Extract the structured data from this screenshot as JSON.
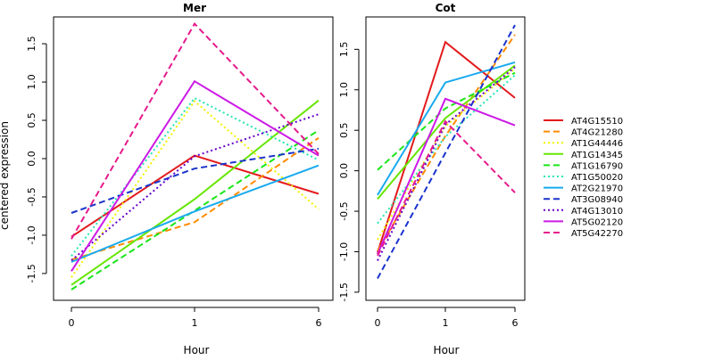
{
  "chart_data": [
    {
      "type": "line",
      "title": "Mer",
      "xlabel": "Hour",
      "ylabel": "centered expression",
      "categories": [
        "0",
        "1",
        "6"
      ],
      "ylim": [
        -1.85,
        1.85
      ],
      "yticks": [
        "-1.5",
        "-1.0",
        "-0.5",
        "0.0",
        "0.5",
        "1.0",
        "1.5"
      ],
      "series": [
        {
          "name": "AT4G15510",
          "values": [
            -1.02,
            0.04,
            -0.46
          ]
        },
        {
          "name": "AT4G21280",
          "values": [
            -1.32,
            -0.83,
            0.27
          ]
        },
        {
          "name": "AT1G44446",
          "values": [
            -1.55,
            0.75,
            -0.66
          ]
        },
        {
          "name": "AT1G14345",
          "values": [
            -1.65,
            -0.53,
            0.76
          ]
        },
        {
          "name": "AT1G16790",
          "values": [
            -1.71,
            -0.68,
            0.37
          ]
        },
        {
          "name": "AT1G50020",
          "values": [
            -1.27,
            0.79,
            -0.02
          ]
        },
        {
          "name": "AT2G21970",
          "values": [
            -1.35,
            -0.69,
            -0.09
          ]
        },
        {
          "name": "AT3G08940",
          "values": [
            -0.71,
            -0.13,
            0.13
          ]
        },
        {
          "name": "AT4G13010",
          "values": [
            -1.33,
            0.03,
            0.58
          ]
        },
        {
          "name": "AT5G02120",
          "values": [
            -1.47,
            1.01,
            0.04
          ]
        },
        {
          "name": "AT5G42270",
          "values": [
            -1.05,
            1.76,
            0.06
          ]
        }
      ]
    },
    {
      "type": "line",
      "title": "Cot",
      "xlabel": "Hour",
      "ylabel": "",
      "categories": [
        "0",
        "1",
        "6"
      ],
      "ylim": [
        -1.6,
        1.9
      ],
      "yticks": [
        "-1.5",
        "-1.0",
        "-0.5",
        "0.0",
        "0.5",
        "1.0",
        "1.5"
      ],
      "series": [
        {
          "name": "AT4G15510",
          "values": [
            -1.01,
            1.59,
            0.9
          ]
        },
        {
          "name": "AT4G21280",
          "values": [
            -0.99,
            0.43,
            1.68
          ]
        },
        {
          "name": "AT1G44446",
          "values": [
            -0.85,
            0.55,
            1.26
          ]
        },
        {
          "name": "AT1G14345",
          "values": [
            -0.35,
            0.65,
            1.3
          ]
        },
        {
          "name": "AT1G16790",
          "values": [
            0.01,
            0.77,
            1.21
          ]
        },
        {
          "name": "AT1G50020",
          "values": [
            -0.65,
            0.42,
            1.18
          ]
        },
        {
          "name": "AT2G21970",
          "values": [
            -0.3,
            1.09,
            1.34
          ]
        },
        {
          "name": "AT3G08940",
          "values": [
            -1.33,
            0.22,
            1.8
          ]
        },
        {
          "name": "AT4G13010",
          "values": [
            -1.11,
            0.57,
            1.28
          ]
        },
        {
          "name": "AT5G02120",
          "values": [
            -1.03,
            0.89,
            0.56
          ]
        },
        {
          "name": "AT5G42270",
          "values": [
            -1.05,
            0.61,
            -0.27
          ]
        }
      ]
    }
  ],
  "legend": {
    "placement": "right",
    "items": [
      {
        "label": "AT4G15510",
        "color": "#e31a1c",
        "dash": "solid"
      },
      {
        "label": "AT4G21280",
        "color": "#ff8c00",
        "dash": "dashed"
      },
      {
        "label": "AT1G44446",
        "color": "#f2f200",
        "dash": "dotted"
      },
      {
        "label": "AT1G14345",
        "color": "#66e600",
        "dash": "solid"
      },
      {
        "label": "AT1G16790",
        "color": "#19e619",
        "dash": "dashed"
      },
      {
        "label": "AT1G50020",
        "color": "#26e6b3",
        "dash": "dotted"
      },
      {
        "label": "AT2G21970",
        "color": "#19aaee",
        "dash": "solid"
      },
      {
        "label": "AT3G08940",
        "color": "#1a33cc",
        "dash": "dashed"
      },
      {
        "label": "AT4G13010",
        "color": "#6600cc",
        "dash": "dotted"
      },
      {
        "label": "AT5G02120",
        "color": "#cc19e6",
        "dash": "solid"
      },
      {
        "label": "AT5G42270",
        "color": "#e6198c",
        "dash": "dashed"
      }
    ]
  }
}
